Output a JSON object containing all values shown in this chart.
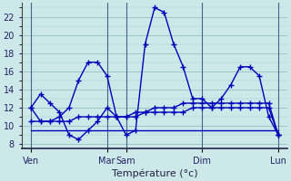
{
  "xlabel": "Température (°c)",
  "bg_color": "#cce8e8",
  "line_color": "#0000bb",
  "grid_color_major": "#aacccc",
  "grid_color_minor": "#bbdddd",
  "ylim": [
    7.5,
    23.5
  ],
  "yticks": [
    8,
    10,
    12,
    14,
    16,
    18,
    20,
    22
  ],
  "xlim": [
    0,
    28
  ],
  "day_labels": [
    "Ven",
    "Mar",
    "Sam",
    "Dim",
    "Lun"
  ],
  "day_positions": [
    1,
    9,
    11,
    19,
    27
  ],
  "vert_line_positions": [
    1,
    9,
    11,
    19,
    27
  ],
  "line1_x": [
    1,
    2,
    3,
    4,
    5,
    6,
    7,
    8,
    9,
    10,
    11,
    12,
    13,
    14,
    15,
    16,
    17,
    18,
    19,
    20,
    21,
    22,
    23,
    24,
    25,
    26,
    27
  ],
  "line1_y": [
    12.0,
    13.5,
    12.5,
    11.5,
    9.0,
    8.5,
    9.5,
    10.5,
    12.0,
    11.0,
    9.0,
    9.5,
    19.0,
    23.0,
    22.5,
    19.0,
    16.5,
    13.0,
    13.0,
    12.0,
    13.0,
    14.5,
    16.5,
    16.5,
    15.5,
    11.0,
    9.0
  ],
  "line2_x": [
    1,
    2,
    3,
    4,
    5,
    6,
    7,
    8,
    9,
    10,
    11,
    12,
    13,
    14,
    15,
    16,
    17,
    18,
    19,
    20,
    21,
    22,
    23,
    24,
    25,
    26,
    27
  ],
  "line2_y": [
    12.0,
    10.5,
    10.5,
    11.0,
    12.0,
    15.0,
    17.0,
    17.0,
    15.5,
    11.0,
    11.0,
    11.5,
    11.5,
    12.0,
    12.0,
    12.0,
    12.5,
    12.5,
    12.5,
    12.5,
    12.5,
    12.5,
    12.5,
    12.5,
    12.5,
    12.5,
    9.0
  ],
  "line3_x": [
    1,
    2,
    3,
    4,
    5,
    6,
    7,
    8,
    9,
    10,
    11,
    12,
    13,
    14,
    15,
    16,
    17,
    18,
    19,
    20,
    21,
    22,
    23,
    24,
    25,
    26,
    27
  ],
  "line3_y": [
    10.5,
    10.5,
    10.5,
    10.5,
    10.5,
    11.0,
    11.0,
    11.0,
    11.0,
    11.0,
    11.0,
    11.0,
    11.5,
    11.5,
    11.5,
    11.5,
    11.5,
    12.0,
    12.0,
    12.0,
    12.0,
    12.0,
    12.0,
    12.0,
    12.0,
    12.0,
    9.0
  ],
  "line4_x": [
    1,
    27
  ],
  "line4_y": [
    9.5,
    9.5
  ],
  "ytick_fontsize": 7,
  "xtick_fontsize": 7,
  "xlabel_fontsize": 8
}
